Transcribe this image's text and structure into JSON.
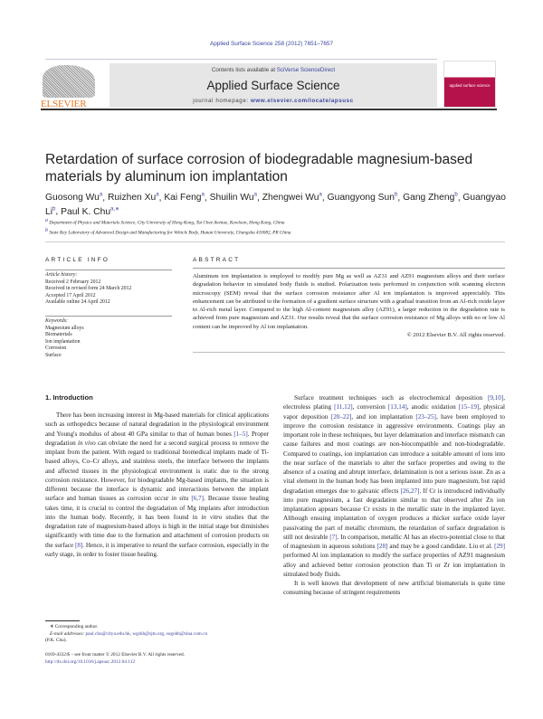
{
  "journal_ref": "Applied Surface Science 258 (2012) 7651–7657",
  "header": {
    "contents_prefix": "Contents lists available at ",
    "contents_link": "SciVerse ScienceDirect",
    "journal_title": "Applied Surface Science",
    "homepage_prefix": "journal homepage: ",
    "homepage_link": "www.elsevier.com/locate/apsusc",
    "publisher": "ELSEVIER",
    "cover_text": "applied surface science"
  },
  "title": "Retardation of surface corrosion of biodegradable magnesium-based materials by aluminum ion implantation",
  "authors": [
    {
      "name": "Guosong Wu",
      "sup": "a"
    },
    {
      "name": "Ruizhen Xu",
      "sup": "a"
    },
    {
      "name": "Kai Feng",
      "sup": "a"
    },
    {
      "name": "Shuilin Wu",
      "sup": "a"
    },
    {
      "name": "Zhengwei Wu",
      "sup": "a"
    },
    {
      "name": "Guangyong Sun",
      "sup": "b"
    },
    {
      "name": "Gang Zheng",
      "sup": "b"
    },
    {
      "name": "Guangyao Li",
      "sup": "b"
    },
    {
      "name": "Paul K. Chu",
      "sup": "a,∗"
    }
  ],
  "affiliations": [
    {
      "sup": "a",
      "text": "Department of Physics and Materials Science, City University of Hong Kong, Tat Chee Avenue, Kowloon, Hong Kong, China"
    },
    {
      "sup": "b",
      "text": "State Key Laboratory of Advanced Design and Manufacturing for Vehicle Body, Hunan University, Changsha 410082, PR China"
    }
  ],
  "article_info": {
    "heading": "ARTICLE INFO",
    "history_label": "Article history:",
    "history": [
      "Received 2 February 2012",
      "Received in revised form 24 March 2012",
      "Accepted 17 April 2012",
      "Available online 24 April 2012"
    ],
    "keywords_label": "Keywords:",
    "keywords": [
      "Magnesium alloys",
      "Biomaterials",
      "Ion implantation",
      "Corrosion",
      "Surface"
    ]
  },
  "abstract": {
    "heading": "ABSTRACT",
    "text": "Aluminum ion implantation is employed to modify pure Mg as well as AZ31 and AZ91 magnesium alloys and their surface degradation behavior in simulated body fluids is studied. Polarization tests performed in conjunction with scanning electron microscopy (SEM) reveal that the surface corrosion resistance after Al ion implantation is improved appreciably. This enhancement can be attributed to the formation of a gradient surface structure with a gradual transition from an Al-rich oxide layer to Al-rich metal layer. Compared to the high Al-content magnesium alloy (AZ91), a larger reduction in the degradation rate is achieved from pure magnesium and AZ31. Our results reveal that the surface corrosion resistance of Mg alloys with no or low Al content can be improved by Al ion implantation.",
    "copyright": "© 2012 Elsevier B.V. All rights reserved."
  },
  "intro": {
    "heading": "1.  Introduction",
    "p1": [
      "There has been increasing interest in Mg-based materials for clinical applications such as orthopedics because of natural degradation in the physiological environment and Young's modulus of about 40 GPa similar to that of human bones ",
      "[1–5]",
      ". Proper degradation ",
      "in vivo",
      " can obviate the need for a second surgical process to remove the implant from the patient. With regard to traditional biomedical implants made of Ti-based alloys, Co–Cr alloys, and stainless steels, the interface between the implants and affected tissues in the physiological environment is static due to the strong corrosion resistance. However, for biodegradable Mg-based implants, the situation is different because the interface is dynamic and interactions between the implant surface and human tissues as corrosion occur ",
      "in situ",
      " ",
      "[6,7]",
      ". Because tissue healing takes time, it is crucial to control the degradation of Mg implants after introduction into the human body. Recently, it has been found in ",
      "in vitro",
      " studies that the degradation rate of magnesium-based alloys is high in the initial stage but diminishes significantly with time due to the formation and attachment of corrosion products on the surface ",
      "[8]",
      ". Hence, it is imperative to retard the surface corrosion, especially in the early stage, in order to foster tissue healing."
    ],
    "p2": [
      "Surface treatment techniques such as electrochemical deposition ",
      "[9,10]",
      ", electroless plating ",
      "[11,12]",
      ", conversion ",
      "[13,14]",
      ", anodic oxidation ",
      "[15–19]",
      ", physical vapor deposition ",
      "[20–22]",
      ", and ion implantation ",
      "[23–25]",
      ", have been employed to improve the corrosion resistance in aggressive environments. Coatings play an important role in these techniques, but layer delamination and interface mismatch can cause failures and most coatings are non-biocompatible and non-biodegradable. Compared to coatings, ion implantation can introduce a suitable amount of ions into the near surface of the materials to alter the surface properties and owing to the absence of a coating and abrupt interface, delamination is not a serious issue. Zn as a vital element in the human body has been implanted into pure magnesium, but rapid degradation emerges due to galvanic effects ",
      "[26,27]",
      ". If Cr is introduced individually into pure magnesium, a fast degradation similar to that observed after Zn ion implantation appears because Cr exists in the metallic state in the implanted layer. Although ensuing implantation of oxygen produces a thicker surface oxide layer passivating the part of metallic chromium, the retardation of surface degradation is still not desirable ",
      "[7]",
      ". In comparison, metallic Al has an electro-potential close to that of magnesium in aqueous solutions ",
      "[28]",
      " and may be a good candidate. Liu et al. ",
      "[29]",
      " performed Al ion implantation to modify the surface properties of AZ91 magnesium alloy and achieved better corrosion protection than Ti or Zr ion implantation in simulated body fluids."
    ],
    "p3": "It is well known that development of new artificial biomaterials is quite time consuming because of stringent requirements"
  },
  "footnote": {
    "corresponding": "∗ Corresponding author.",
    "email_label": "E-mail addresses: ",
    "emails": "paul.chu@cityu.edu.hk, wgshh@sjtu.org, sogohh@sina.com.cn",
    "email_suffix": "(P.K. Chu).",
    "issn": "0169-4332/$ – see front matter © 2012 Elsevier B.V. All rights reserved.",
    "doi": "http://dx.doi.org/10.1016/j.apsusc.2012.04.112"
  },
  "colors": {
    "link": "#3a44a0",
    "elsevier_orange": "#e87722",
    "cover": "#b5124b"
  }
}
